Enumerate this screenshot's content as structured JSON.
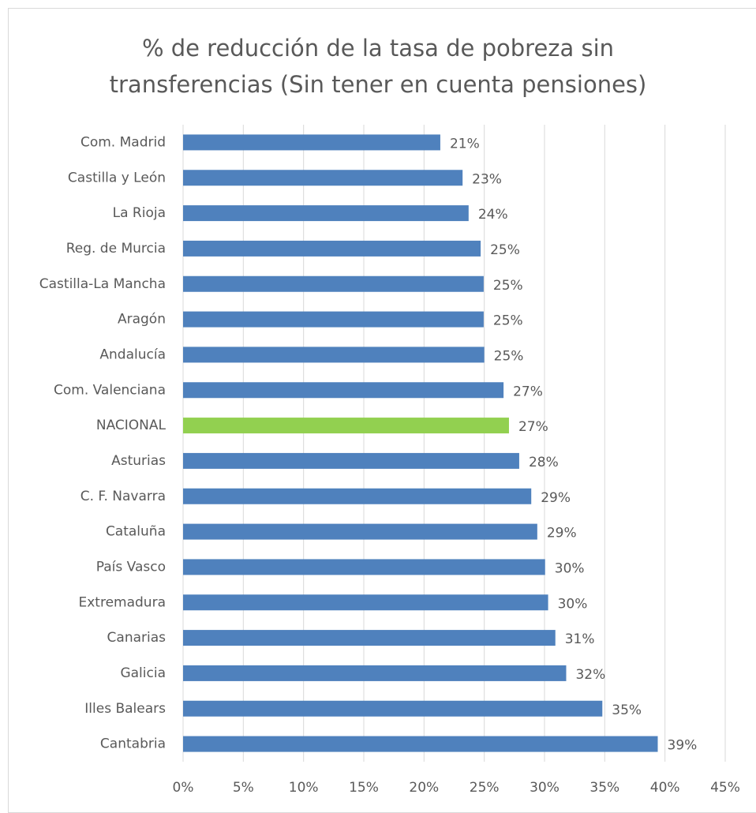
{
  "chart_data": {
    "type": "bar",
    "orientation": "horizontal",
    "title": "% de reducción de la tasa de pobreza sin transferencias (Sin tener en cuenta pensiones)",
    "categories": [
      "Com. Madrid",
      "Castilla y León",
      "La Rioja",
      "Reg. de Murcia",
      "Castilla-La Mancha",
      "Aragón",
      "Andalucía",
      "Com. Valenciana",
      "NACIONAL",
      "Asturias",
      "C. F. Navarra",
      "Cataluña",
      "País Vasco",
      "Extremadura",
      "Canarias",
      "Galicia",
      "Illes Balears",
      "Cantabria"
    ],
    "values": [
      21.35,
      23.2,
      23.7,
      24.7,
      24.95,
      24.95,
      25.0,
      26.6,
      27.05,
      27.9,
      28.9,
      29.4,
      30.05,
      30.3,
      30.9,
      31.8,
      34.8,
      39.4
    ],
    "value_labels": [
      "21%",
      "23%",
      "24%",
      "25%",
      "25%",
      "25%",
      "25%",
      "27%",
      "27%",
      "28%",
      "29%",
      "29%",
      "30%",
      "30%",
      "31%",
      "32%",
      "35%",
      "39%"
    ],
    "colors": [
      "#4f81bd",
      "#4f81bd",
      "#4f81bd",
      "#4f81bd",
      "#4f81bd",
      "#4f81bd",
      "#4f81bd",
      "#4f81bd",
      "#92d050",
      "#4f81bd",
      "#4f81bd",
      "#4f81bd",
      "#4f81bd",
      "#4f81bd",
      "#4f81bd",
      "#4f81bd",
      "#4f81bd",
      "#4f81bd"
    ],
    "xlim": [
      0,
      45
    ],
    "xticks": [
      {
        "value": 0,
        "label": "0%"
      },
      {
        "value": 5,
        "label": "5%"
      },
      {
        "value": 10,
        "label": "10%"
      },
      {
        "value": 15,
        "label": "15%"
      },
      {
        "value": 20,
        "label": "20%"
      },
      {
        "value": 25,
        "label": "25%"
      },
      {
        "value": 30,
        "label": "30%"
      },
      {
        "value": 35,
        "label": "35%"
      },
      {
        "value": 40,
        "label": "40%"
      },
      {
        "value": 45,
        "label": "45%"
      }
    ],
    "grid": true
  }
}
